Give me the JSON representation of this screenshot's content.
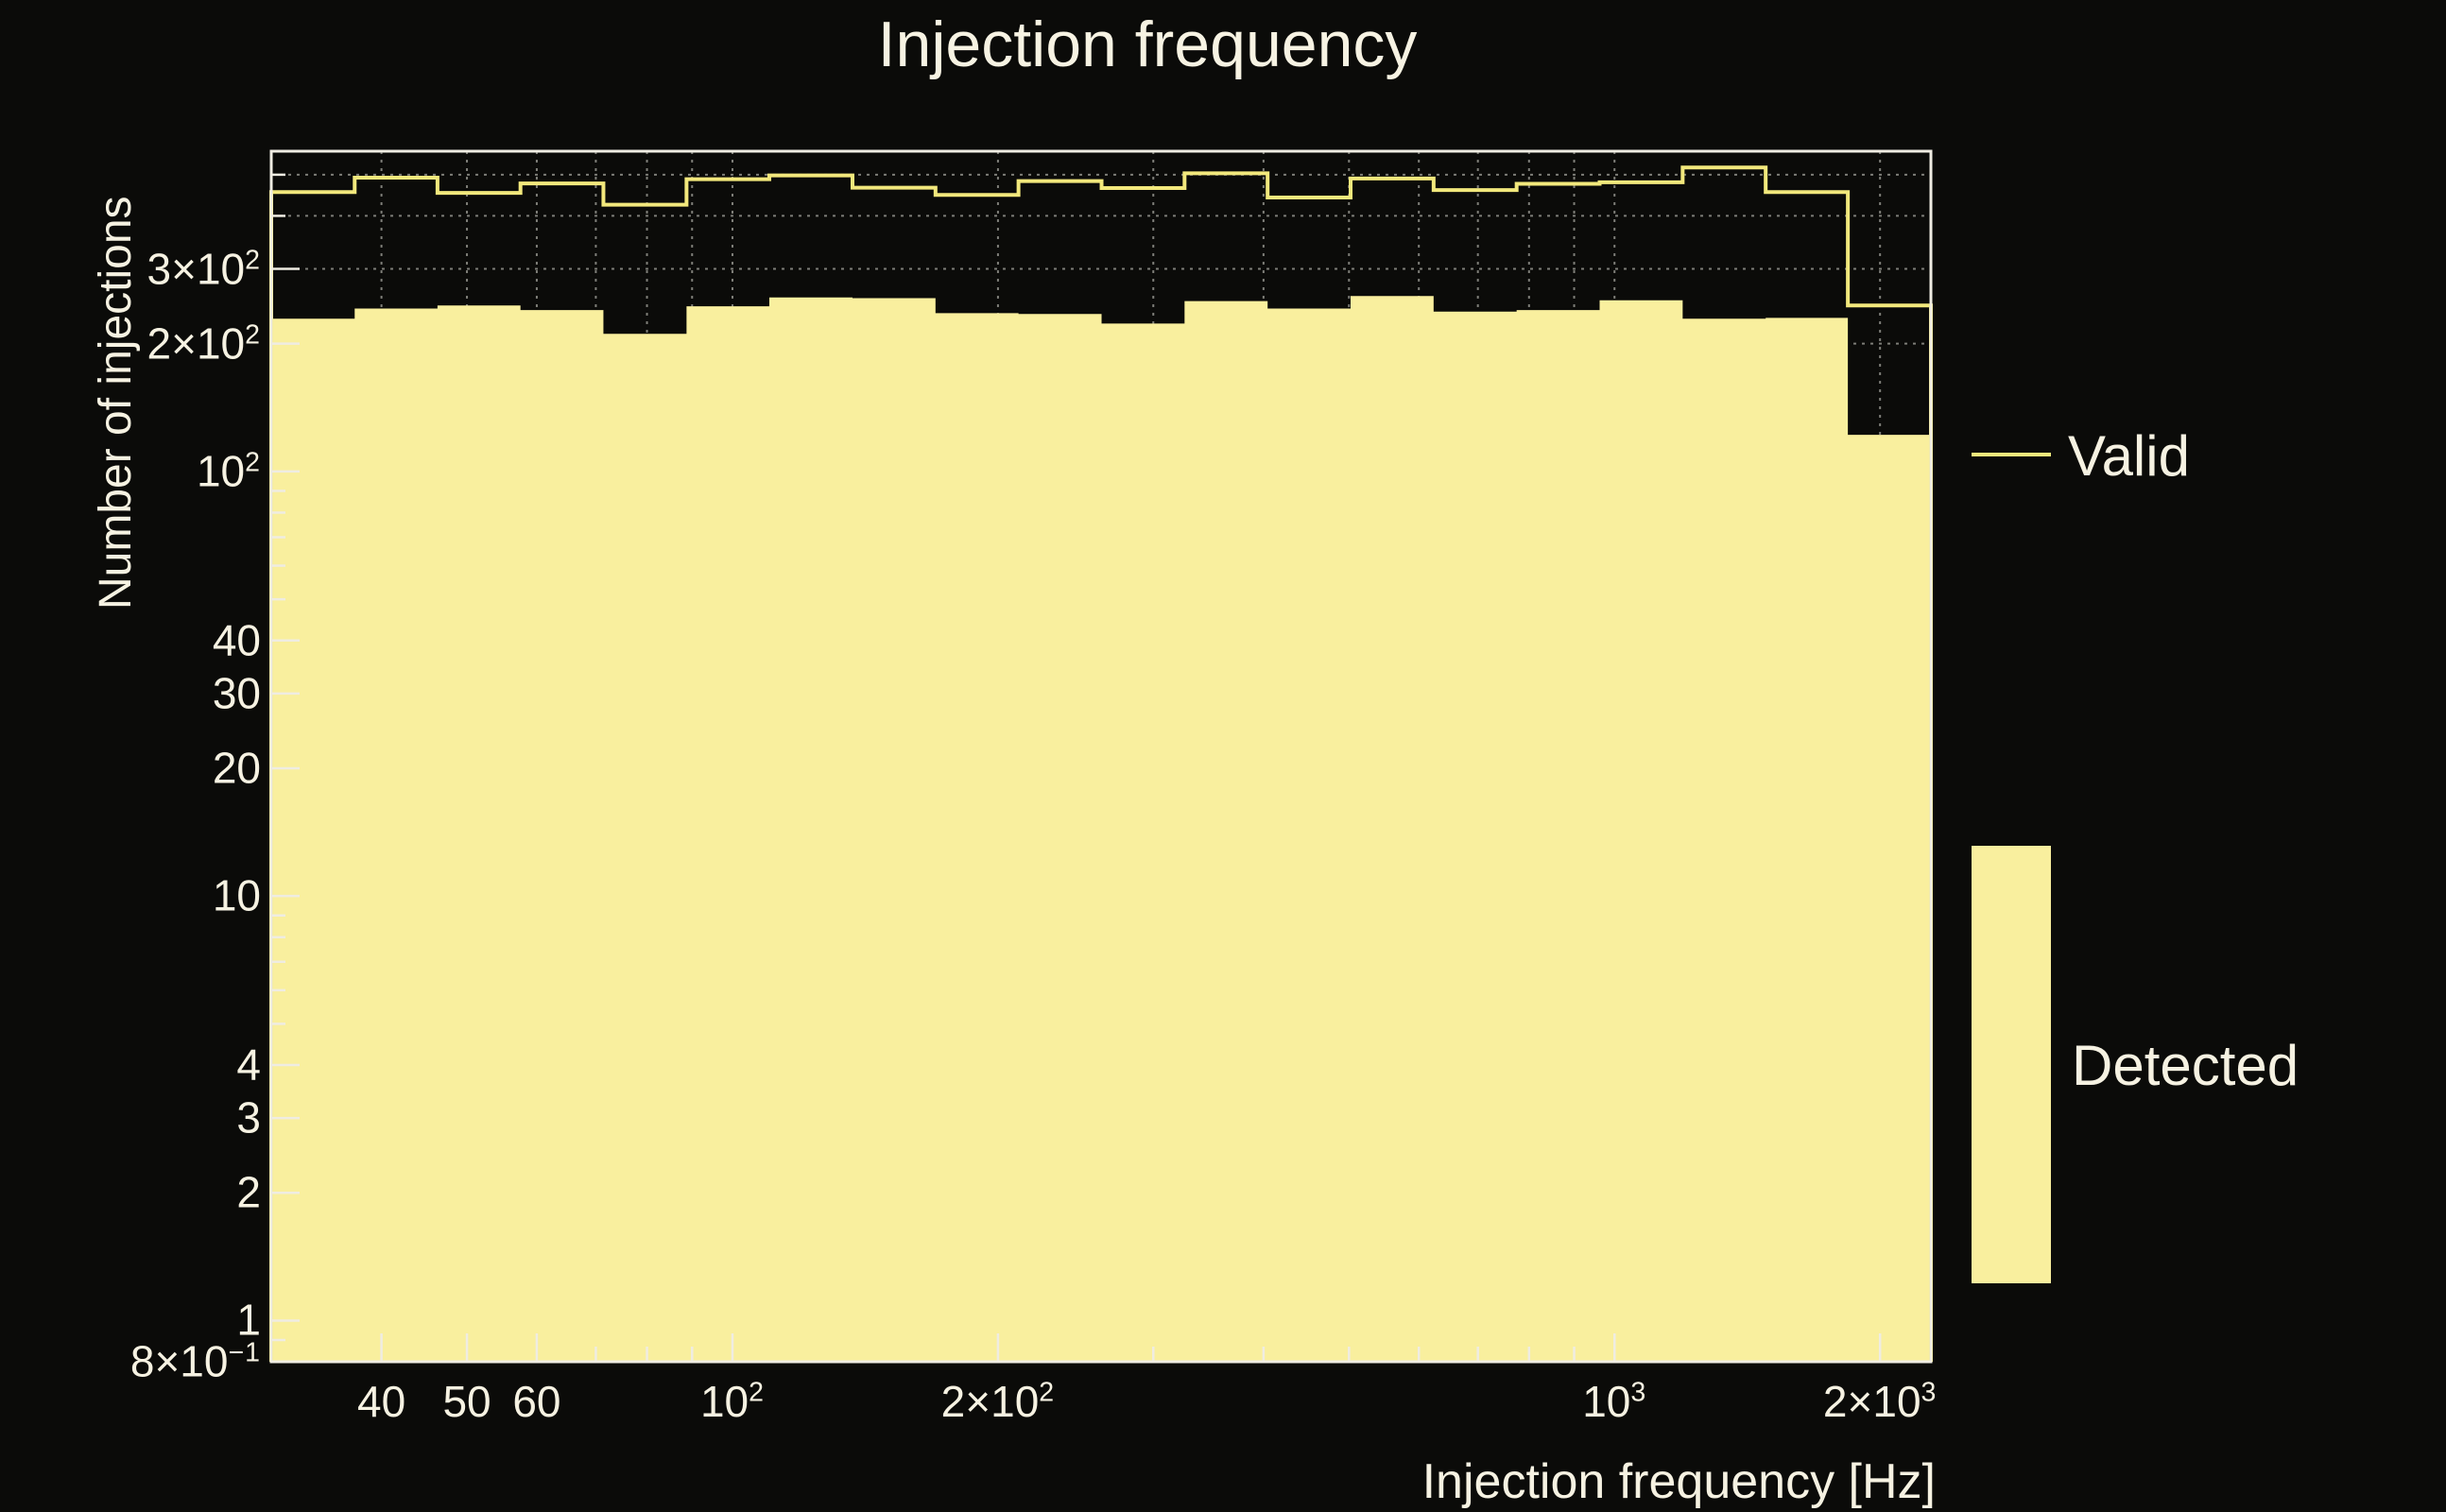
{
  "title": "Injection frequency",
  "colors": {
    "background": "#0b0b09",
    "detected_fill": "#f9ef9e",
    "valid_line": "#f2e87c",
    "frame": "#efece2",
    "grid": "#7e7e78",
    "text": "#f6f2e2"
  },
  "legend": {
    "position": "right",
    "items": [
      {
        "label": "Valid",
        "style": "line"
      },
      {
        "label": "Detected",
        "style": "fill"
      }
    ]
  },
  "axes": {
    "x": {
      "title": "Injection frequency [Hz]",
      "scale": "log",
      "ticks": [
        {
          "v": 40,
          "m": "40"
        },
        {
          "v": 50,
          "m": "50"
        },
        {
          "v": 60,
          "m": "60"
        },
        {
          "v": 100,
          "m": "10",
          "s": "2"
        },
        {
          "v": 200,
          "m": "2×10",
          "s": "2"
        },
        {
          "v": 1000,
          "m": "10",
          "s": "3"
        },
        {
          "v": 2000,
          "m": "2×10",
          "s": "3"
        }
      ]
    },
    "y": {
      "title": "Number of injections",
      "scale": "log",
      "ticks": [
        {
          "v": 0.8,
          "m": "8×10",
          "s": "−1"
        },
        {
          "v": 1,
          "m": "1"
        },
        {
          "v": 2,
          "m": "2"
        },
        {
          "v": 3,
          "m": "3"
        },
        {
          "v": 4,
          "m": "4"
        },
        {
          "v": 10,
          "m": "10"
        },
        {
          "v": 20,
          "m": "20"
        },
        {
          "v": 30,
          "m": "30"
        },
        {
          "v": 40,
          "m": "40"
        },
        {
          "v": 100,
          "m": "10",
          "s": "2"
        },
        {
          "v": 200,
          "m": "2×10",
          "s": "2"
        },
        {
          "v": 300,
          "m": "3×10",
          "s": "2"
        }
      ]
    }
  },
  "chart_data": {
    "type": "histogram-step",
    "title": "Injection frequency",
    "xlabel": "Injection frequency [Hz]",
    "ylabel": "Number of injections",
    "xscale": "log",
    "yscale": "log",
    "xlim": [
      30,
      2284
    ],
    "ylim": [
      0.8,
      568
    ],
    "grid": true,
    "bin_edges": [
      30,
      37.3,
      46.3,
      57.5,
      71.4,
      88.7,
      110.1,
      136.8,
      169.9,
      211.0,
      262.1,
      325.5,
      404.3,
      502.1,
      623.6,
      774.5,
      961.9,
      1194.7,
      1483.8,
      1838.8,
      2284
    ],
    "series": [
      {
        "name": "Valid",
        "style": "step-line",
        "values": [
          455,
          492,
          453,
          477,
          425,
          488,
          498,
          466,
          448,
          483,
          465,
          504,
          442,
          490,
          460,
          476,
          480,
          520,
          455,
          246
        ]
      },
      {
        "name": "Detected",
        "style": "step-fill",
        "values": [
          229,
          242,
          246,
          240,
          211,
          245,
          257,
          256,
          236,
          235,
          223,
          252,
          242,
          259,
          238,
          240,
          253,
          229,
          230,
          122
        ]
      }
    ]
  }
}
